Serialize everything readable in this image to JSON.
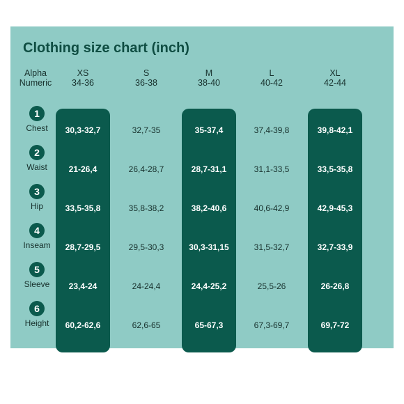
{
  "title": "Clothing size chart (inch)",
  "row_header": {
    "alpha": "Alpha",
    "numeric": "Numeric"
  },
  "sizes": [
    {
      "alpha": "XS",
      "numeric": "34-36",
      "highlighted": true
    },
    {
      "alpha": "S",
      "numeric": "36-38",
      "highlighted": false
    },
    {
      "alpha": "M",
      "numeric": "38-40",
      "highlighted": true
    },
    {
      "alpha": "L",
      "numeric": "40-42",
      "highlighted": false
    },
    {
      "alpha": "XL",
      "numeric": "42-44",
      "highlighted": true
    }
  ],
  "rows": [
    {
      "num": "1",
      "label": "Chest",
      "values": [
        "30,3-32,7",
        "32,7-35",
        "35-37,4",
        "37,4-39,8",
        "39,8-42,1"
      ]
    },
    {
      "num": "2",
      "label": "Waist",
      "values": [
        "21-26,4",
        "26,4-28,7",
        "28,7-31,1",
        "31,1-33,5",
        "33,5-35,8"
      ]
    },
    {
      "num": "3",
      "label": "Hip",
      "values": [
        "33,5-35,8",
        "35,8-38,2",
        "38,2-40,6",
        "40,6-42,9",
        "42,9-45,3"
      ]
    },
    {
      "num": "4",
      "label": "Inseam",
      "values": [
        "28,7-29,5",
        "29,5-30,3",
        "30,3-31,15",
        "31,5-32,7",
        "32,7-33,9"
      ]
    },
    {
      "num": "5",
      "label": "Sleeve",
      "values": [
        "23,4-24",
        "24-24,4",
        "24,4-25,2",
        "25,5-26",
        "26-26,8"
      ]
    },
    {
      "num": "6",
      "label": "Height",
      "values": [
        "60,2-62,6",
        "62,6-65",
        "65-67,3",
        "67,3-69,7",
        "69,7-72"
      ]
    }
  ],
  "colors": {
    "background": "#8fcbc5",
    "band": "#0b5a4d",
    "title": "#0f4d42"
  }
}
